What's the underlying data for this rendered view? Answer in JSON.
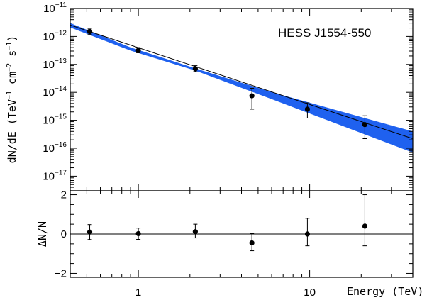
{
  "chart_data": [
    {
      "type": "scatter",
      "title": "HESS J1554-550",
      "xlabel": "Energy (TeV)",
      "ylabel": "dN/dE (TeV⁻¹ cm⁻² s⁻¹)",
      "ylabel_parts": {
        "lead": "dN/dE (TeV",
        "e1": "−1",
        "mid1": " cm",
        "e2": "−2",
        "mid2": " s",
        "e3": "−1",
        "tail": ")"
      },
      "x_scale": "log",
      "y_scale": "log",
      "xlim": [
        0.4,
        40
      ],
      "ylim": [
        3e-18,
        1e-11
      ],
      "y_ticks": [
        {
          "base": "10",
          "exp": "−11",
          "value": 1e-11
        },
        {
          "base": "10",
          "exp": "−12",
          "value": 1e-12
        },
        {
          "base": "10",
          "exp": "−13",
          "value": 1e-13
        },
        {
          "base": "10",
          "exp": "−14",
          "value": 1e-14
        },
        {
          "base": "10",
          "exp": "−15",
          "value": 1e-15
        },
        {
          "base": "10",
          "exp": "−16",
          "value": 1e-16
        },
        {
          "base": "10",
          "exp": "−17",
          "value": 1e-17
        }
      ],
      "x_ticks": [
        {
          "label": "1",
          "value": 1
        },
        {
          "label": "10",
          "value": 10
        }
      ],
      "points": [
        {
          "x": 0.52,
          "y": 1.5e-12,
          "ylo": 1.2e-12,
          "yhi": 1.85e-12
        },
        {
          "x": 1.0,
          "y": 3.2e-13,
          "ylo": 2.6e-13,
          "yhi": 4e-13
        },
        {
          "x": 2.15,
          "y": 7e-14,
          "ylo": 5.5e-14,
          "yhi": 9e-14
        },
        {
          "x": 4.6,
          "y": 7.5e-15,
          "ylo": 2.5e-15,
          "yhi": 1.4e-14
        },
        {
          "x": 9.7,
          "y": 2.5e-15,
          "ylo": 1.2e-15,
          "yhi": 4.2e-15
        },
        {
          "x": 21,
          "y": 7e-16,
          "ylo": 2.2e-16,
          "yhi": 1.45e-15
        }
      ],
      "fit": {
        "line": [
          {
            "x": 0.4,
            "y": 2.55e-12
          },
          {
            "x": 40,
            "y": 2.2e-16
          }
        ],
        "band_upper": [
          {
            "x": 0.4,
            "y": 3e-12
          },
          {
            "x": 0.9,
            "y": 4.05e-13
          },
          {
            "x": 2.15,
            "y": 7.2e-14
          },
          {
            "x": 6,
            "y": 1.02e-14
          },
          {
            "x": 40,
            "y": 4e-16
          }
        ],
        "band_lower": [
          {
            "x": 40,
            "y": 7e-17
          },
          {
            "x": 6,
            "y": 5.7e-15
          },
          {
            "x": 2.15,
            "y": 6e-14
          },
          {
            "x": 0.9,
            "y": 3.1e-13
          },
          {
            "x": 0.4,
            "y": 2.1e-12
          }
        ],
        "band_color": "#1f61ef"
      }
    },
    {
      "type": "scatter",
      "ylabel": "ΔN/N",
      "xlabel": "Energy (TeV)",
      "x_scale": "log",
      "xlim": [
        0.4,
        40
      ],
      "ylim": [
        -2.2,
        2.2
      ],
      "y_ticks": [
        {
          "label": "2",
          "value": 2
        },
        {
          "label": "0",
          "value": 0
        },
        {
          "label": "−2",
          "value": -2
        }
      ],
      "points": [
        {
          "x": 0.52,
          "y": 0.1,
          "ylo": -0.28,
          "yhi": 0.48
        },
        {
          "x": 1.0,
          "y": 0.02,
          "ylo": -0.27,
          "yhi": 0.3
        },
        {
          "x": 2.15,
          "y": 0.12,
          "ylo": -0.2,
          "yhi": 0.5
        },
        {
          "x": 4.6,
          "y": -0.45,
          "ylo": -0.85,
          "yhi": 0.03
        },
        {
          "x": 9.7,
          "y": 0.0,
          "ylo": -0.6,
          "yhi": 0.8
        },
        {
          "x": 21,
          "y": 0.4,
          "ylo": -0.6,
          "yhi": 2.0
        }
      ],
      "reference_line": 0
    }
  ]
}
